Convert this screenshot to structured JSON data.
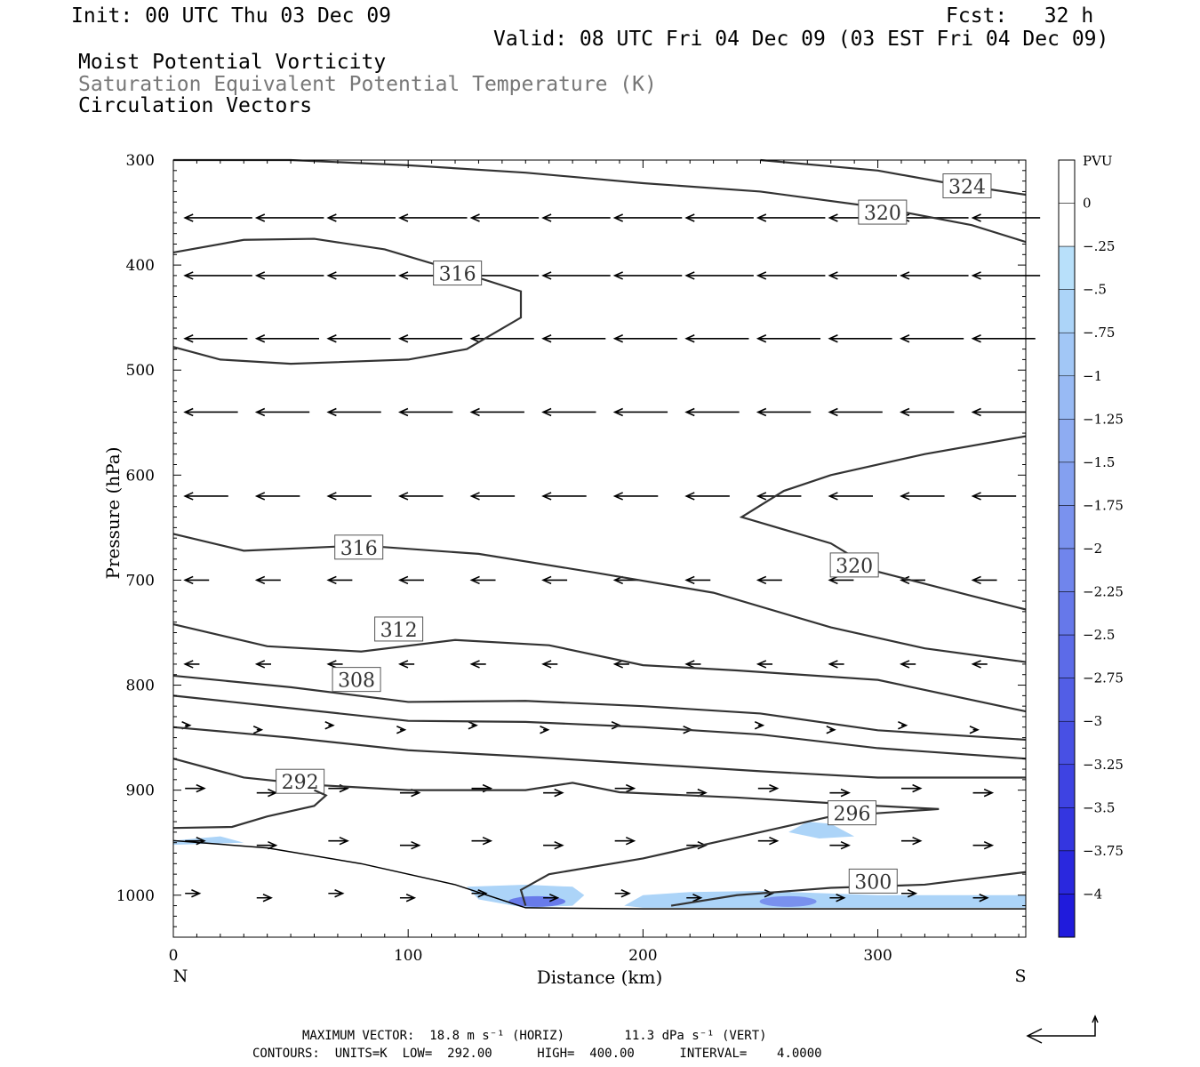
{
  "header": {
    "init": "Init: 00 UTC Thu 03 Dec 09",
    "fcst": "Fcst:   32 h",
    "valid": "Valid: 08 UTC Fri 04 Dec 09 (03 EST Fri 04 Dec 09)",
    "line1": "Moist Potential Vorticity",
    "line2": "Saturation Equivalent Potential Temperature (K)",
    "line3": "Circulation Vectors"
  },
  "footer": {
    "max_vector": "MAXIMUM VECTOR:  18.8 m s⁻¹ (HORIZ)        11.3 dPa s⁻¹ (VERT)",
    "contours": "CONTOURS:  UNITS=K  LOW=  292.00      HIGH=  400.00      INTERVAL=    4.0000"
  },
  "colors": {
    "contour": "#333333",
    "pv_light": "#b8e0fa",
    "pv_dark": "#1a10d8"
  },
  "chart_data": {
    "type": "heatmap",
    "title": "Moist Potential Vorticity / Saturation Equivalent Potential Temperature (K) / Circulation Vectors",
    "xlabel": "Distance (km)",
    "ylabel": "Pressure (hPa)",
    "xlim": [
      0,
      363
    ],
    "ylim": [
      300,
      1040
    ],
    "x_ticks": [
      0,
      100,
      200,
      300
    ],
    "y_ticks": [
      300,
      400,
      500,
      600,
      700,
      800,
      900,
      1000
    ],
    "x_end_labels": {
      "left": "N",
      "right": "S"
    },
    "colorbar": {
      "unit": "PVU",
      "levels": [
        "0",
        "-.25",
        "-.5",
        "-.75",
        "-1",
        "-1.25",
        "-1.5",
        "-1.75",
        "-2",
        "-2.25",
        "-2.5",
        "-2.75",
        "-3",
        "-3.25",
        "-3.5",
        "-3.75",
        "-4"
      ],
      "colors": [
        "#ffffff",
        "#ffffff",
        "#b8e0fa",
        "#acd4f8",
        "#a2c7f6",
        "#98baf4",
        "#8eacf2",
        "#84a0f0",
        "#7a92ee",
        "#7085ec",
        "#6678ea",
        "#5c6be8",
        "#525ee6",
        "#4850e4",
        "#3e43e2",
        "#3436e0",
        "#2a28de",
        "#201bdc"
      ]
    },
    "contours": [
      {
        "label": "324",
        "label_at": [
          338,
          325
        ],
        "points": [
          [
            250,
            300
          ],
          [
            300,
            310
          ],
          [
            330,
            322
          ],
          [
            363,
            333
          ]
        ]
      },
      {
        "label": "320",
        "label_at": [
          302,
          350
        ],
        "points": [
          [
            0,
            300
          ],
          [
            50,
            300
          ],
          [
            100,
            305
          ],
          [
            150,
            312
          ],
          [
            200,
            322
          ],
          [
            250,
            330
          ],
          [
            300,
            345
          ],
          [
            340,
            362
          ],
          [
            363,
            378
          ]
        ]
      },
      {
        "label": "316",
        "label_at": [
          121,
          408
        ],
        "points": [
          [
            0,
            388
          ],
          [
            30,
            376
          ],
          [
            60,
            375
          ],
          [
            90,
            385
          ],
          [
            120,
            405
          ],
          [
            148,
            425
          ],
          [
            148,
            450
          ],
          [
            125,
            480
          ],
          [
            100,
            490
          ],
          [
            50,
            494
          ],
          [
            20,
            490
          ],
          [
            0,
            478
          ]
        ]
      },
      {
        "label": "320",
        "label_at": [
          290,
          686
        ],
        "points": [
          [
            363,
            563
          ],
          [
            320,
            580
          ],
          [
            280,
            600
          ],
          [
            260,
            615
          ],
          [
            242,
            640
          ],
          [
            280,
            665
          ],
          [
            300,
            692
          ],
          [
            340,
            715
          ],
          [
            363,
            728
          ]
        ]
      },
      {
        "label": "316",
        "label_at": [
          79,
          669
        ],
        "points": [
          [
            0,
            656
          ],
          [
            30,
            672
          ],
          [
            80,
            667
          ],
          [
            130,
            675
          ],
          [
            180,
            693
          ],
          [
            230,
            712
          ],
          [
            280,
            745
          ],
          [
            320,
            765
          ],
          [
            363,
            778
          ]
        ]
      },
      {
        "label": "312",
        "label_at": [
          96,
          747
        ],
        "points": [
          [
            0,
            742
          ],
          [
            40,
            763
          ],
          [
            80,
            768
          ],
          [
            120,
            757
          ],
          [
            160,
            762
          ],
          [
            200,
            781
          ],
          [
            240,
            786
          ],
          [
            300,
            795
          ],
          [
            363,
            825
          ]
        ]
      },
      {
        "label": "308",
        "label_at": [
          78,
          795
        ],
        "points": [
          [
            0,
            791
          ],
          [
            50,
            802
          ],
          [
            100,
            816
          ],
          [
            150,
            815
          ],
          [
            200,
            820
          ],
          [
            250,
            827
          ],
          [
            300,
            843
          ],
          [
            363,
            852
          ]
        ]
      },
      {
        "label": "",
        "label_at": null,
        "points": [
          [
            0,
            810
          ],
          [
            50,
            822
          ],
          [
            100,
            834
          ],
          [
            150,
            835
          ],
          [
            200,
            840
          ],
          [
            250,
            847
          ],
          [
            300,
            860
          ],
          [
            363,
            870
          ]
        ]
      },
      {
        "label": "",
        "label_at": null,
        "points": [
          [
            0,
            840
          ],
          [
            50,
            850
          ],
          [
            100,
            862
          ],
          [
            150,
            868
          ],
          [
            200,
            875
          ],
          [
            250,
            882
          ],
          [
            300,
            888
          ],
          [
            363,
            888
          ]
        ]
      },
      {
        "label": "292",
        "label_at": [
          54,
          892
        ],
        "points": [
          [
            0,
            870
          ],
          [
            30,
            888
          ],
          [
            60,
            895
          ],
          [
            100,
            900
          ],
          [
            150,
            900
          ],
          [
            170,
            893
          ],
          [
            190,
            902
          ],
          [
            240,
            907
          ],
          [
            300,
            915
          ],
          [
            326,
            918
          ],
          [
            280,
            925
          ],
          [
            240,
            945
          ],
          [
            200,
            965
          ],
          [
            160,
            980
          ],
          [
            148,
            995
          ],
          [
            150,
            1010
          ]
        ]
      },
      {
        "label": "296",
        "label_at": [
          289,
          922
        ],
        "points": [
          [
            0,
            936
          ],
          [
            25,
            935
          ],
          [
            40,
            925
          ],
          [
            60,
            915
          ],
          [
            65,
            905
          ],
          [
            60,
            900
          ]
        ]
      },
      {
        "label": "300",
        "label_at": [
          298,
          987
        ],
        "points": [
          [
            212,
            1010
          ],
          [
            240,
            1000
          ],
          [
            280,
            993
          ],
          [
            320,
            990
          ],
          [
            363,
            978
          ]
        ]
      }
    ],
    "pv_regions": [
      {
        "name": "near-surface band north",
        "min_pvu": -0.5,
        "points": [
          [
            0,
            948
          ],
          [
            20,
            944
          ],
          [
            30,
            950
          ],
          [
            0,
            952
          ]
        ]
      },
      {
        "name": "surface low center",
        "min_pvu": -2.5,
        "points": [
          [
            125,
            992
          ],
          [
            150,
            990
          ],
          [
            170,
            992
          ],
          [
            175,
            1000
          ],
          [
            170,
            1010
          ],
          [
            150,
            1012
          ],
          [
            130,
            1004
          ]
        ]
      },
      {
        "name": "surface low south",
        "min_pvu": -2.0,
        "points": [
          [
            192,
            1010
          ],
          [
            200,
            1000
          ],
          [
            220,
            997
          ],
          [
            250,
            996
          ],
          [
            300,
            1000
          ],
          [
            363,
            1000
          ],
          [
            363,
            1012
          ],
          [
            250,
            1012
          ],
          [
            200,
            1012
          ]
        ]
      },
      {
        "name": "mid-level patch",
        "min_pvu": -0.25,
        "points": [
          [
            262,
            940
          ],
          [
            270,
            930
          ],
          [
            280,
            932
          ],
          [
            290,
            944
          ],
          [
            275,
            946
          ]
        ]
      }
    ],
    "vectors": {
      "max_horiz": "18.8 m s⁻¹",
      "max_vert": "11.3 dPa s⁻¹",
      "rows": [
        {
          "p": 355,
          "u": -14
        },
        {
          "p": 410,
          "u": -14
        },
        {
          "p": 470,
          "u": -13
        },
        {
          "p": 540,
          "u": -11
        },
        {
          "p": 620,
          "u": -9
        },
        {
          "p": 700,
          "u": -5
        },
        {
          "p": 780,
          "u": -3
        },
        {
          "p": 840,
          "u": 1
        },
        {
          "p": 900,
          "u": 4
        },
        {
          "p": 950,
          "u": 4
        },
        {
          "p": 1000,
          "u": 3
        }
      ]
    }
  }
}
